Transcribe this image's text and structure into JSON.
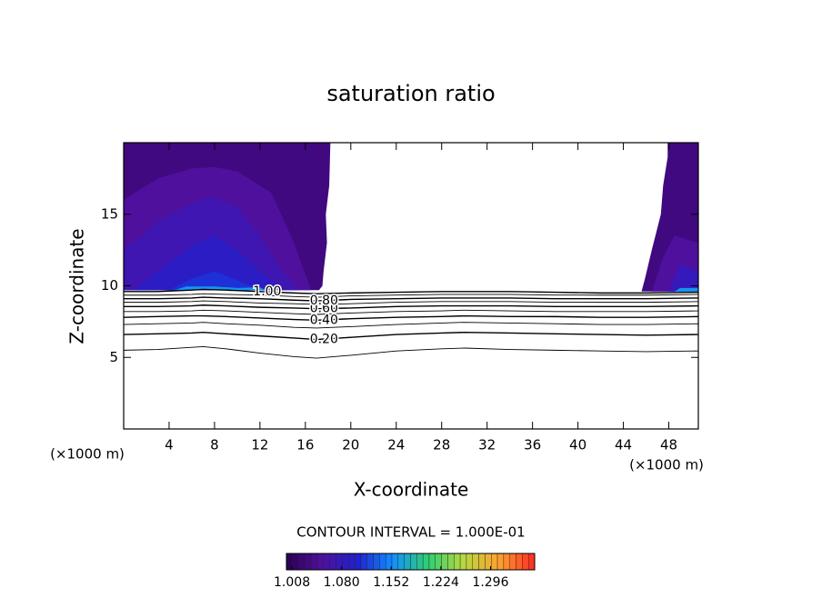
{
  "chart_data": {
    "type": "contour",
    "title": "saturation ratio",
    "xlabel": "X-coordinate",
    "ylabel": "Z-coordinate",
    "xunit": "(×1000 m)",
    "yunit": "(×1000 m)",
    "annotation": "CONTOUR INTERVAL = 1.000E-01",
    "xlim": [
      0,
      50.6
    ],
    "ylim": [
      0,
      20
    ],
    "xticks": [
      4,
      8,
      12,
      16,
      20,
      24,
      28,
      32,
      36,
      40,
      44,
      48
    ],
    "yticks": [
      5,
      10,
      15
    ],
    "line_color": "#000000",
    "colormap": [
      "#2a0050",
      "#5010a0",
      "#2020d0",
      "#1090ff",
      "#30d070",
      "#b8d840",
      "#ffa030",
      "#ff2a20"
    ],
    "colorbar_lim": [
      1.0,
      1.36
    ],
    "colorbar_ticks": [
      {
        "value": 1.008,
        "label": "1.008"
      },
      {
        "value": 1.08,
        "label": "1.080"
      },
      1.152,
      1.224,
      1.296
    ],
    "x": [
      0,
      3,
      6,
      7,
      9,
      12,
      15,
      17,
      20,
      24,
      28,
      30,
      34,
      38,
      42,
      46,
      50.6
    ],
    "contours": [
      {
        "level": 0.1,
        "z": [
          5.5,
          5.55,
          5.7,
          5.75,
          5.6,
          5.3,
          5.05,
          4.95,
          5.15,
          5.45,
          5.6,
          5.65,
          5.55,
          5.5,
          5.45,
          5.4,
          5.45
        ]
      },
      {
        "level": 0.2,
        "label": "0.20",
        "z": [
          6.6,
          6.65,
          6.7,
          6.75,
          6.65,
          6.5,
          6.35,
          6.25,
          6.4,
          6.6,
          6.7,
          6.75,
          6.7,
          6.65,
          6.6,
          6.55,
          6.6
        ]
      },
      {
        "level": 0.3,
        "z": [
          7.3,
          7.35,
          7.4,
          7.45,
          7.35,
          7.25,
          7.1,
          7.05,
          7.15,
          7.3,
          7.4,
          7.45,
          7.4,
          7.35,
          7.3,
          7.3,
          7.35
        ]
      },
      {
        "level": 0.4,
        "label": "0.40",
        "z": [
          7.8,
          7.85,
          7.9,
          7.9,
          7.85,
          7.75,
          7.65,
          7.6,
          7.7,
          7.8,
          7.85,
          7.9,
          7.85,
          7.85,
          7.8,
          7.8,
          7.85
        ]
      },
      {
        "level": 0.5,
        "z": [
          8.2,
          8.2,
          8.25,
          8.3,
          8.25,
          8.15,
          8.05,
          8.0,
          8.1,
          8.2,
          8.25,
          8.3,
          8.25,
          8.2,
          8.2,
          8.2,
          8.25
        ]
      },
      {
        "level": 0.6,
        "label": "0.60",
        "z": [
          8.55,
          8.55,
          8.6,
          8.65,
          8.6,
          8.5,
          8.45,
          8.4,
          8.45,
          8.55,
          8.6,
          8.6,
          8.6,
          8.55,
          8.55,
          8.55,
          8.6
        ]
      },
      {
        "level": 0.7,
        "z": [
          8.85,
          8.85,
          8.9,
          8.95,
          8.9,
          8.8,
          8.75,
          8.7,
          8.75,
          8.85,
          8.9,
          8.9,
          8.9,
          8.85,
          8.85,
          8.85,
          8.9
        ]
      },
      {
        "level": 0.8,
        "label": "0.80",
        "z": [
          9.1,
          9.1,
          9.15,
          9.2,
          9.15,
          9.1,
          9.0,
          8.95,
          9.05,
          9.1,
          9.15,
          9.15,
          9.15,
          9.1,
          9.1,
          9.1,
          9.15
        ]
      },
      {
        "level": 0.9,
        "z": [
          9.35,
          9.35,
          9.4,
          9.45,
          9.4,
          9.35,
          9.25,
          9.2,
          9.3,
          9.35,
          9.4,
          9.4,
          9.4,
          9.35,
          9.35,
          9.35,
          9.4
        ]
      },
      {
        "level": 1.0,
        "label": "1.00",
        "z": [
          9.6,
          9.6,
          9.7,
          9.75,
          9.7,
          9.6,
          9.5,
          9.45,
          9.5,
          9.55,
          9.6,
          9.6,
          9.6,
          9.55,
          9.5,
          9.5,
          9.55
        ]
      }
    ],
    "filled_regions": [
      {
        "level": 1.03,
        "x": [
          0,
          18.2,
          18.1,
          17.8,
          17.9,
          17.6,
          17.5,
          17.2,
          0
        ],
        "z": [
          20,
          20,
          17,
          15,
          13,
          11,
          10,
          9.7,
          9.7
        ]
      },
      {
        "level": 1.03,
        "x": [
          47.9,
          50.6,
          50.6,
          45.6,
          45.9,
          46.5,
          47.3,
          47.5,
          47.9
        ],
        "z": [
          20,
          20,
          9.6,
          9.6,
          10.5,
          12.5,
          15,
          17,
          19
        ]
      },
      {
        "level": 1.05,
        "x": [
          0,
          0,
          3,
          6,
          8,
          10,
          13,
          15,
          16.5
        ],
        "z": [
          9.7,
          16,
          17.5,
          18.2,
          18.3,
          18,
          16.5,
          13,
          9.7
        ]
      },
      {
        "level": 1.07,
        "x": [
          0,
          0,
          3,
          6,
          8,
          10,
          12,
          14,
          15.5
        ],
        "z": [
          9.7,
          12.5,
          14.5,
          15.8,
          16.2,
          15.5,
          13.5,
          11,
          9.7
        ]
      },
      {
        "level": 1.09,
        "x": [
          1,
          3,
          6,
          8,
          10,
          12,
          14
        ],
        "z": [
          9.7,
          11,
          12.8,
          13.5,
          12.5,
          11,
          9.7
        ]
      },
      {
        "level": 1.11,
        "x": [
          4,
          6,
          8,
          10,
          12
        ],
        "z": [
          9.7,
          10.5,
          11,
          10.4,
          9.7
        ]
      },
      {
        "level": 1.05,
        "x": [
          46.5,
          47.5,
          48.5,
          50.6,
          50.6
        ],
        "z": [
          9.6,
          12,
          13.5,
          13,
          9.6
        ]
      },
      {
        "level": 1.08,
        "x": [
          48,
          49,
          50.6,
          50.6
        ],
        "z": [
          9.6,
          11.5,
          11,
          9.6
        ]
      },
      {
        "level": 1.16,
        "x": [
          4.5,
          5.5,
          8,
          10,
          12,
          12.5
        ],
        "z": [
          9.7,
          9.95,
          9.95,
          9.85,
          9.9,
          9.7
        ]
      },
      {
        "level": 1.16,
        "x": [
          48.5,
          49,
          50.6,
          50.6
        ],
        "z": [
          9.6,
          9.85,
          9.85,
          9.6
        ]
      }
    ]
  }
}
